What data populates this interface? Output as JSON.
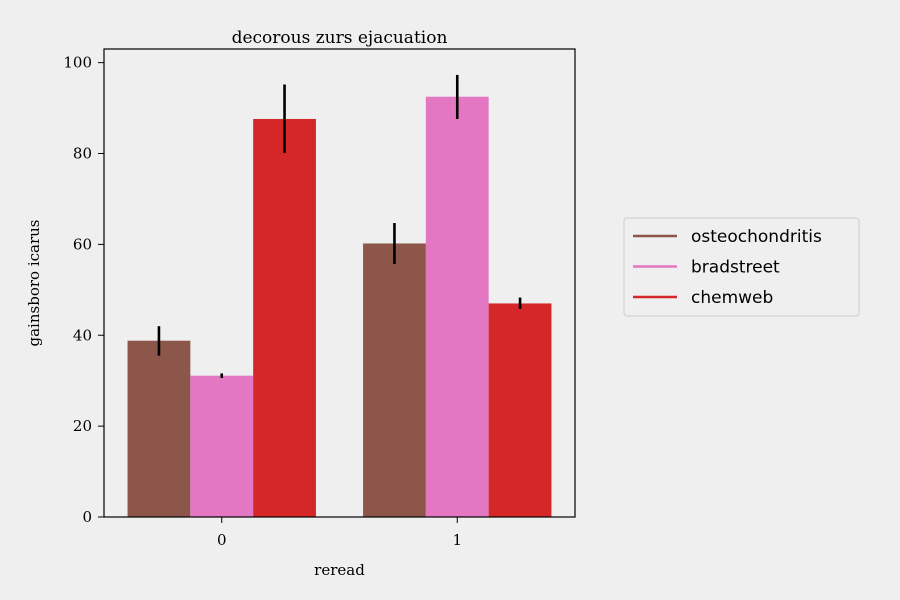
{
  "chart_data": {
    "type": "bar",
    "title": "decorous zurs ejacuation",
    "xlabel": "reread",
    "ylabel": "gainsboro icarus",
    "categories": [
      "0",
      "1"
    ],
    "ylim": [
      0,
      103
    ],
    "yticks": [
      0,
      20,
      40,
      60,
      80,
      100
    ],
    "grid": false,
    "legend_position": "right",
    "series": [
      {
        "name": "osteochondritis",
        "color": "#8c564b",
        "values": [
          38.8,
          60.2
        ],
        "errors": [
          [
            35.5,
            42.0
          ],
          [
            55.7,
            64.7
          ]
        ]
      },
      {
        "name": "bradstreet",
        "color": "#e377c2",
        "values": [
          31.1,
          92.5
        ],
        "errors": [
          [
            30.6,
            31.6
          ],
          [
            87.6,
            97.3
          ]
        ]
      },
      {
        "name": "chemweb",
        "color": "#d62728",
        "values": [
          87.6,
          47.0
        ],
        "errors": [
          [
            80.1,
            95.2
          ],
          [
            45.8,
            48.3
          ]
        ]
      }
    ]
  }
}
